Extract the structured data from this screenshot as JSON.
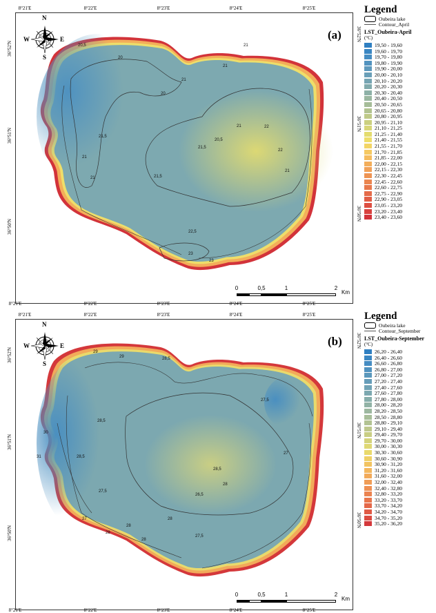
{
  "panels": [
    {
      "label": "(a)",
      "legend": {
        "title": "Legend",
        "lake": "Oubeira lake",
        "contour": "Contour_April",
        "layer": "LST_Oubeira-April",
        "unit": "(°C)",
        "classes": [
          {
            "label": "19,50 - 19,60",
            "color": "#2f7fc1"
          },
          {
            "label": "19,60 - 19,70",
            "color": "#3a86c2"
          },
          {
            "label": "19,70 - 19,80",
            "color": "#468dc2"
          },
          {
            "label": "19,80 - 19,90",
            "color": "#5293bf"
          },
          {
            "label": "19,90 - 20,00",
            "color": "#5e99bc"
          },
          {
            "label": "20,00 - 20,10",
            "color": "#6a9fb8"
          },
          {
            "label": "20,10 - 20,20",
            "color": "#76a5b3"
          },
          {
            "label": "20,20 - 20,30",
            "color": "#82abad"
          },
          {
            "label": "20,30 - 20,40",
            "color": "#8eb1a7"
          },
          {
            "label": "20,40 - 20,50",
            "color": "#9ab7a0"
          },
          {
            "label": "20,50 - 20,65",
            "color": "#a6bd99"
          },
          {
            "label": "20,65 - 20,80",
            "color": "#b2c391"
          },
          {
            "label": "20,80 - 20,95",
            "color": "#bfca88"
          },
          {
            "label": "20,95 - 21,10",
            "color": "#cbd07f"
          },
          {
            "label": "21,10 - 21,25",
            "color": "#d8d677"
          },
          {
            "label": "21,25 - 21,40",
            "color": "#e4dc6f"
          },
          {
            "label": "21,40 - 21,55",
            "color": "#eede6a"
          },
          {
            "label": "21,55 - 21,70",
            "color": "#f3d566"
          },
          {
            "label": "21,70 - 21,85",
            "color": "#f5c962"
          },
          {
            "label": "21,85 - 22,00",
            "color": "#f5bc5e"
          },
          {
            "label": "22,00 - 22,15",
            "color": "#f3ae5a"
          },
          {
            "label": "22,15 - 22,30",
            "color": "#f1a157"
          },
          {
            "label": "22,30 - 22,45",
            "color": "#ee9453"
          },
          {
            "label": "22,45 - 22,60",
            "color": "#eb8650"
          },
          {
            "label": "22,60 - 22,75",
            "color": "#e8794c"
          },
          {
            "label": "22,75 - 22,90",
            "color": "#e56b49"
          },
          {
            "label": "22,90 - 23,05",
            "color": "#e15d45"
          },
          {
            "label": "23,05 - 23,20",
            "color": "#dd4f42"
          },
          {
            "label": "23,20 - 23,40",
            "color": "#d8413e"
          },
          {
            "label": "23,40 - 23,60",
            "color": "#d2333a"
          }
        ]
      },
      "ticks": {
        "top": [
          "8°21'E",
          "8°22'E",
          "8°23'E",
          "8°24'E",
          "8°25'E"
        ],
        "bottom": [
          "8°21'E",
          "8°22'E",
          "8°23'E",
          "8°24'E",
          "8°25'E"
        ],
        "left": [
          "36°52'N",
          "36°51'N",
          "36°50'N"
        ],
        "right": [
          "36°52'N",
          "36°51'N",
          "36°50'N"
        ]
      },
      "scale": {
        "labels": [
          "0",
          "0,5",
          "1",
          "2"
        ],
        "unit": "Km"
      },
      "contour_labels": [
        "20,5",
        "20",
        "20",
        "21",
        "21",
        "21",
        "21",
        "21",
        "21,5",
        "21,5",
        "21,5",
        "20,5",
        "21",
        "22",
        "22",
        "22,5",
        "23",
        "23",
        "21"
      ],
      "gradient": {
        "edge": "#d2333a",
        "outer": "#f3ae5a",
        "shore": "#eede6a",
        "west": "#4f92c0",
        "center": "#dcd874",
        "south": "#7da9b0"
      }
    },
    {
      "label": "(b)",
      "legend": {
        "title": "Legend",
        "lake": "Oubeira lake",
        "contour": "Contour_September",
        "layer": "LST_Oubeira-September",
        "unit": "(°C)",
        "classes": [
          {
            "label": "26,20 - 26,40",
            "color": "#2f7fc1"
          },
          {
            "label": "26,40 - 26,60",
            "color": "#3a86c2"
          },
          {
            "label": "26,60 - 26,80",
            "color": "#458cc2"
          },
          {
            "label": "26,80 - 27,00",
            "color": "#5092bf"
          },
          {
            "label": "27,00 - 27,20",
            "color": "#5b98bc"
          },
          {
            "label": "27,20 - 27,40",
            "color": "#669db9"
          },
          {
            "label": "27,40 - 27,60",
            "color": "#71a3b5"
          },
          {
            "label": "27,60 - 27,80",
            "color": "#7ca8b0"
          },
          {
            "label": "27,80 - 28,00",
            "color": "#87aeab"
          },
          {
            "label": "28,00 - 28,20",
            "color": "#92b3a6"
          },
          {
            "label": "28,20 - 28,50",
            "color": "#9db8a0"
          },
          {
            "label": "28,50 - 28,80",
            "color": "#a8be9a"
          },
          {
            "label": "28,80 - 29,10",
            "color": "#b3c393"
          },
          {
            "label": "29,10 - 29,40",
            "color": "#bec88c"
          },
          {
            "label": "29,40 - 29,70",
            "color": "#c9ce84"
          },
          {
            "label": "29,70 - 30,00",
            "color": "#d4d37c"
          },
          {
            "label": "30,00 - 30,30",
            "color": "#dfd874"
          },
          {
            "label": "30,30 - 30,60",
            "color": "#e9da6c"
          },
          {
            "label": "30,60 - 30,90",
            "color": "#efd066"
          },
          {
            "label": "30,90 - 31,20",
            "color": "#f2c462"
          },
          {
            "label": "31,20 - 31,60",
            "color": "#f3b75e"
          },
          {
            "label": "31,60 - 32,00",
            "color": "#f2aa5a"
          },
          {
            "label": "32,00 - 32,40",
            "color": "#f09d57"
          },
          {
            "label": "32,40 - 32,80",
            "color": "#ee9053"
          },
          {
            "label": "32,80 - 33,20",
            "color": "#eb8350"
          },
          {
            "label": "33,20 - 33,70",
            "color": "#e8764c"
          },
          {
            "label": "33,70 - 34,20",
            "color": "#e46849"
          },
          {
            "label": "34,20 - 34,70",
            "color": "#e05a45"
          },
          {
            "label": "34,70 - 35,20",
            "color": "#db4b41"
          },
          {
            "label": "35,20 - 36,20",
            "color": "#d4383b"
          }
        ]
      },
      "ticks": {
        "top": [
          "8°21'E",
          "8°22'E",
          "8°23'E",
          "8°24'E",
          "8°25'E"
        ],
        "bottom": [
          "8°21'E",
          "8°22'E",
          "8°23'E",
          "8°24'E",
          "8°25'E"
        ],
        "left": [
          "36°52'N",
          "36°51'N",
          "36°50'N"
        ],
        "right": [
          "36°52'N",
          "36°51'N",
          "36°50'N"
        ]
      },
      "scale": {
        "labels": [
          "0",
          "0,5",
          "1",
          "2"
        ],
        "unit": "Km"
      },
      "contour_labels": [
        "29",
        "28,5",
        "28,5",
        "27,5",
        "27,5",
        "28,5",
        "27",
        "28",
        "28",
        "28",
        "27,5",
        "26,5",
        "28",
        "27",
        "30",
        "31",
        "29",
        "28,5",
        "28"
      ],
      "gradient": {
        "edge": "#d4383b",
        "outer": "#f2aa5a",
        "shore": "#e9da6c",
        "west": "#4a8fc0",
        "center": "#c9ce84",
        "south": "#7ca8b0"
      }
    }
  ],
  "compass": {
    "n": "N",
    "s": "S",
    "e": "E",
    "w": "W"
  }
}
